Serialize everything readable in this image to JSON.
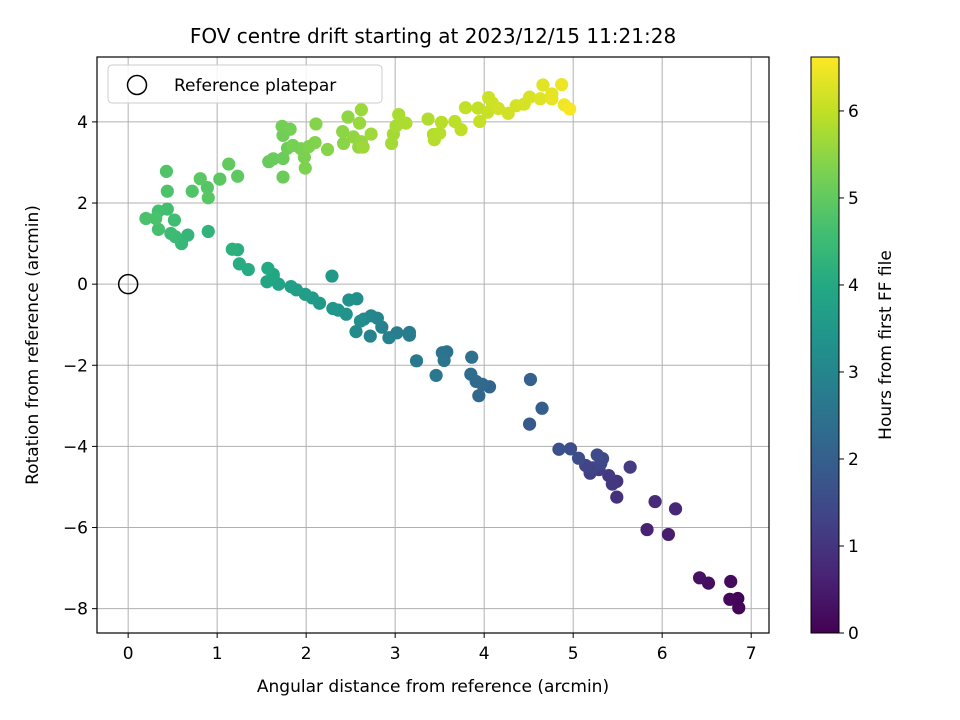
{
  "chart_data": {
    "type": "scatter",
    "title": "FOV centre drift starting at 2023/12/15 11:21:28",
    "xlabel": "Angular distance from reference (arcmin)",
    "ylabel": "Rotation from reference (arcmin)",
    "xlim": [
      -0.35,
      7.2
    ],
    "ylim": [
      -8.6,
      5.6
    ],
    "xticks": [
      "0",
      "1",
      "2",
      "3",
      "4",
      "5",
      "6",
      "7"
    ],
    "yticks": [
      "−8",
      "−6",
      "−4",
      "−2",
      "0",
      "2",
      "4"
    ],
    "grid": true,
    "colormap": "viridis",
    "colorbar": {
      "label": "Hours from first FF file",
      "range": [
        0,
        6.62
      ],
      "ticks": [
        "0",
        "1",
        "2",
        "3",
        "4",
        "5",
        "6"
      ]
    },
    "legend": {
      "position": "top-left",
      "entries": [
        "Reference platepar"
      ]
    },
    "reference_point": {
      "x": 0,
      "y": 0
    },
    "points": [
      {
        "x": 6.85,
        "y": -7.75,
        "h": 0.05
      },
      {
        "x": 6.86,
        "y": -7.98,
        "h": 0.08
      },
      {
        "x": 6.76,
        "y": -7.77,
        "h": 0.12
      },
      {
        "x": 6.77,
        "y": -7.33,
        "h": 0.18
      },
      {
        "x": 6.52,
        "y": -7.37,
        "h": 0.25
      },
      {
        "x": 6.42,
        "y": -7.24,
        "h": 0.3
      },
      {
        "x": 6.07,
        "y": -6.17,
        "h": 0.55
      },
      {
        "x": 5.83,
        "y": -6.05,
        "h": 0.62
      },
      {
        "x": 6.15,
        "y": -5.54,
        "h": 0.72
      },
      {
        "x": 5.92,
        "y": -5.36,
        "h": 0.8
      },
      {
        "x": 5.49,
        "y": -5.25,
        "h": 0.9
      },
      {
        "x": 5.49,
        "y": -4.86,
        "h": 1.0
      },
      {
        "x": 5.44,
        "y": -4.93,
        "h": 1.05
      },
      {
        "x": 5.4,
        "y": -4.72,
        "h": 1.1
      },
      {
        "x": 5.64,
        "y": -4.51,
        "h": 1.15
      },
      {
        "x": 5.29,
        "y": -4.57,
        "h": 1.2
      },
      {
        "x": 5.19,
        "y": -4.66,
        "h": 1.25
      },
      {
        "x": 5.22,
        "y": -4.53,
        "h": 1.3
      },
      {
        "x": 5.14,
        "y": -4.47,
        "h": 1.35
      },
      {
        "x": 5.31,
        "y": -4.42,
        "h": 1.4
      },
      {
        "x": 5.33,
        "y": -4.3,
        "h": 1.45
      },
      {
        "x": 5.27,
        "y": -4.21,
        "h": 1.5
      },
      {
        "x": 5.06,
        "y": -4.29,
        "h": 1.55
      },
      {
        "x": 4.97,
        "y": -4.06,
        "h": 1.6
      },
      {
        "x": 4.84,
        "y": -4.07,
        "h": 1.65
      },
      {
        "x": 4.51,
        "y": -3.45,
        "h": 1.85
      },
      {
        "x": 4.65,
        "y": -3.06,
        "h": 1.95
      },
      {
        "x": 4.52,
        "y": -2.35,
        "h": 2.05
      },
      {
        "x": 4.06,
        "y": -2.53,
        "h": 2.15
      },
      {
        "x": 3.94,
        "y": -2.75,
        "h": 2.2
      },
      {
        "x": 3.98,
        "y": -2.47,
        "h": 2.25
      },
      {
        "x": 3.91,
        "y": -2.4,
        "h": 2.3
      },
      {
        "x": 3.85,
        "y": -2.22,
        "h": 2.35
      },
      {
        "x": 3.86,
        "y": -1.8,
        "h": 2.45
      },
      {
        "x": 3.58,
        "y": -1.67,
        "h": 2.5
      },
      {
        "x": 3.53,
        "y": -1.69,
        "h": 2.55
      },
      {
        "x": 3.55,
        "y": -1.88,
        "h": 2.6
      },
      {
        "x": 3.46,
        "y": -2.25,
        "h": 2.62
      },
      {
        "x": 3.24,
        "y": -1.89,
        "h": 2.65
      },
      {
        "x": 3.16,
        "y": -1.19,
        "h": 2.7
      },
      {
        "x": 3.16,
        "y": -1.26,
        "h": 2.75
      },
      {
        "x": 3.02,
        "y": -1.2,
        "h": 2.8
      },
      {
        "x": 2.93,
        "y": -1.32,
        "h": 2.85
      },
      {
        "x": 2.85,
        "y": -1.06,
        "h": 2.9
      },
      {
        "x": 2.72,
        "y": -1.28,
        "h": 2.95
      },
      {
        "x": 2.8,
        "y": -0.84,
        "h": 3.0
      },
      {
        "x": 2.73,
        "y": -0.78,
        "h": 3.05
      },
      {
        "x": 2.65,
        "y": -0.86,
        "h": 3.1
      },
      {
        "x": 2.56,
        "y": -1.17,
        "h": 3.15
      },
      {
        "x": 2.61,
        "y": -0.91,
        "h": 3.2
      },
      {
        "x": 2.57,
        "y": -0.36,
        "h": 3.25
      },
      {
        "x": 2.48,
        "y": -0.39,
        "h": 3.3
      },
      {
        "x": 2.45,
        "y": -0.74,
        "h": 3.35
      },
      {
        "x": 2.36,
        "y": -0.64,
        "h": 3.4
      },
      {
        "x": 2.3,
        "y": -0.6,
        "h": 3.45
      },
      {
        "x": 2.29,
        "y": 0.2,
        "h": 3.5
      },
      {
        "x": 2.15,
        "y": -0.47,
        "h": 3.55
      },
      {
        "x": 2.07,
        "y": -0.34,
        "h": 3.6
      },
      {
        "x": 1.99,
        "y": -0.25,
        "h": 3.65
      },
      {
        "x": 1.89,
        "y": -0.14,
        "h": 3.7
      },
      {
        "x": 1.83,
        "y": -0.06,
        "h": 3.75
      },
      {
        "x": 1.69,
        "y": 0.0,
        "h": 3.8
      },
      {
        "x": 1.63,
        "y": 0.2,
        "h": 3.85
      },
      {
        "x": 1.56,
        "y": 0.06,
        "h": 3.9
      },
      {
        "x": 1.63,
        "y": 0.24,
        "h": 3.95
      },
      {
        "x": 1.57,
        "y": 0.39,
        "h": 4.0
      },
      {
        "x": 1.35,
        "y": 0.36,
        "h": 4.05
      },
      {
        "x": 1.25,
        "y": 0.5,
        "h": 4.1
      },
      {
        "x": 1.23,
        "y": 0.85,
        "h": 4.15
      },
      {
        "x": 1.17,
        "y": 0.86,
        "h": 4.2
      },
      {
        "x": 0.9,
        "y": 1.3,
        "h": 4.3
      },
      {
        "x": 0.67,
        "y": 1.21,
        "h": 4.35
      },
      {
        "x": 0.6,
        "y": 1.0,
        "h": 4.4
      },
      {
        "x": 0.53,
        "y": 1.17,
        "h": 4.45
      },
      {
        "x": 0.48,
        "y": 1.25,
        "h": 4.5
      },
      {
        "x": 0.52,
        "y": 1.58,
        "h": 4.55
      },
      {
        "x": 0.44,
        "y": 1.85,
        "h": 4.6
      },
      {
        "x": 0.34,
        "y": 1.8,
        "h": 4.62
      },
      {
        "x": 0.34,
        "y": 1.35,
        "h": 4.65
      },
      {
        "x": 0.31,
        "y": 1.62,
        "h": 4.7
      },
      {
        "x": 0.2,
        "y": 1.62,
        "h": 4.72
      },
      {
        "x": 0.44,
        "y": 2.29,
        "h": 4.75
      },
      {
        "x": 0.43,
        "y": 2.78,
        "h": 4.78
      },
      {
        "x": 0.72,
        "y": 2.29,
        "h": 4.8
      },
      {
        "x": 0.89,
        "y": 2.38,
        "h": 4.85
      },
      {
        "x": 0.9,
        "y": 2.13,
        "h": 4.88
      },
      {
        "x": 0.81,
        "y": 2.6,
        "h": 4.9
      },
      {
        "x": 1.03,
        "y": 2.59,
        "h": 4.93
      },
      {
        "x": 1.23,
        "y": 2.66,
        "h": 4.96
      },
      {
        "x": 1.13,
        "y": 2.96,
        "h": 5.0
      },
      {
        "x": 1.58,
        "y": 3.02,
        "h": 5.05
      },
      {
        "x": 1.63,
        "y": 3.09,
        "h": 5.07
      },
      {
        "x": 1.74,
        "y": 3.1,
        "h": 5.1
      },
      {
        "x": 1.74,
        "y": 2.64,
        "h": 5.12
      },
      {
        "x": 1.79,
        "y": 3.35,
        "h": 5.15
      },
      {
        "x": 1.74,
        "y": 3.67,
        "h": 5.17
      },
      {
        "x": 1.73,
        "y": 3.89,
        "h": 5.2
      },
      {
        "x": 1.82,
        "y": 3.82,
        "h": 5.22
      },
      {
        "x": 1.85,
        "y": 3.42,
        "h": 5.25
      },
      {
        "x": 1.94,
        "y": 3.34,
        "h": 5.27
      },
      {
        "x": 1.98,
        "y": 3.13,
        "h": 5.3
      },
      {
        "x": 1.99,
        "y": 2.86,
        "h": 5.32
      },
      {
        "x": 2.03,
        "y": 3.39,
        "h": 5.35
      },
      {
        "x": 2.1,
        "y": 3.49,
        "h": 5.37
      },
      {
        "x": 2.11,
        "y": 3.95,
        "h": 5.4
      },
      {
        "x": 2.24,
        "y": 3.32,
        "h": 5.42
      },
      {
        "x": 2.42,
        "y": 3.47,
        "h": 5.45
      },
      {
        "x": 2.41,
        "y": 3.76,
        "h": 5.47
      },
      {
        "x": 2.47,
        "y": 4.12,
        "h": 5.5
      },
      {
        "x": 2.53,
        "y": 3.63,
        "h": 5.52
      },
      {
        "x": 2.59,
        "y": 3.38,
        "h": 5.55
      },
      {
        "x": 2.62,
        "y": 3.51,
        "h": 5.57
      },
      {
        "x": 2.6,
        "y": 3.97,
        "h": 5.6
      },
      {
        "x": 2.62,
        "y": 4.3,
        "h": 5.62
      },
      {
        "x": 2.64,
        "y": 3.38,
        "h": 5.65
      },
      {
        "x": 2.73,
        "y": 3.7,
        "h": 5.67
      },
      {
        "x": 2.96,
        "y": 3.47,
        "h": 5.7
      },
      {
        "x": 2.98,
        "y": 3.7,
        "h": 5.72
      },
      {
        "x": 3.01,
        "y": 3.9,
        "h": 5.75
      },
      {
        "x": 3.04,
        "y": 4.18,
        "h": 5.77
      },
      {
        "x": 3.12,
        "y": 3.97,
        "h": 5.8
      },
      {
        "x": 3.37,
        "y": 4.07,
        "h": 5.82
      },
      {
        "x": 3.43,
        "y": 3.69,
        "h": 5.85
      },
      {
        "x": 3.44,
        "y": 3.56,
        "h": 5.87
      },
      {
        "x": 3.5,
        "y": 3.72,
        "h": 5.9
      },
      {
        "x": 3.52,
        "y": 3.99,
        "h": 5.92
      },
      {
        "x": 3.67,
        "y": 4.01,
        "h": 5.95
      },
      {
        "x": 3.74,
        "y": 3.81,
        "h": 5.97
      },
      {
        "x": 3.79,
        "y": 4.35,
        "h": 6.0
      },
      {
        "x": 3.93,
        "y": 4.34,
        "h": 6.02
      },
      {
        "x": 3.95,
        "y": 4.01,
        "h": 6.05
      },
      {
        "x": 4.04,
        "y": 4.24,
        "h": 6.07
      },
      {
        "x": 4.05,
        "y": 4.6,
        "h": 6.1
      },
      {
        "x": 4.09,
        "y": 4.47,
        "h": 6.12
      },
      {
        "x": 4.16,
        "y": 4.33,
        "h": 6.15
      },
      {
        "x": 4.27,
        "y": 4.21,
        "h": 6.17
      },
      {
        "x": 4.36,
        "y": 4.4,
        "h": 6.2
      },
      {
        "x": 4.45,
        "y": 4.44,
        "h": 6.22
      },
      {
        "x": 4.51,
        "y": 4.61,
        "h": 6.25
      },
      {
        "x": 4.63,
        "y": 4.57,
        "h": 6.3
      },
      {
        "x": 4.66,
        "y": 4.91,
        "h": 6.33
      },
      {
        "x": 4.76,
        "y": 4.69,
        "h": 6.36
      },
      {
        "x": 4.76,
        "y": 4.57,
        "h": 6.4
      },
      {
        "x": 4.87,
        "y": 4.92,
        "h": 6.45
      },
      {
        "x": 4.9,
        "y": 4.42,
        "h": 6.5
      },
      {
        "x": 4.96,
        "y": 4.32,
        "h": 6.55
      }
    ]
  }
}
